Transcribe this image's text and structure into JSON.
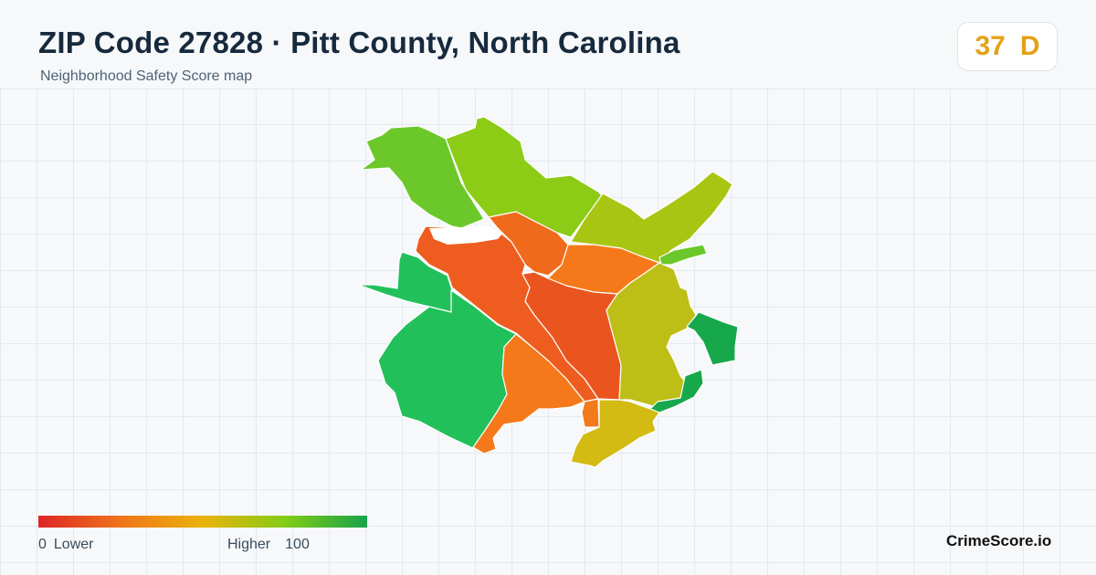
{
  "header": {
    "title": "ZIP Code 27828 · Pitt County, North Carolina",
    "subtitle": "Neighborhood Safety Score map"
  },
  "score_badge": {
    "score": "37",
    "grade": "D",
    "color": "#e3a215"
  },
  "legend": {
    "low_value": "0",
    "low_label": "Lower",
    "high_label": "Higher",
    "high_value": "100",
    "colors": [
      "#dc2626",
      "#f0741c",
      "#eab308",
      "#84cc16",
      "#16a34a"
    ]
  },
  "brand": {
    "name": "CrimeScore.io"
  },
  "map": {
    "region_colors": {
      "north_west": "#6cc82a",
      "north_central": "#8ccb16",
      "north_east": "#a8c514",
      "east_strip": "#6cc82a",
      "center_north": "#f06a1c",
      "center_east": "#f5791a",
      "center": "#ee5d1f",
      "center_right": "#ea551f",
      "west": "#22c05a",
      "south_west": "#22c05a",
      "south_central": "#f5781b",
      "east": "#bdbe16",
      "far_east_upper": "#17a84b",
      "far_east_lower": "#17a84b",
      "south_east": "#d3bb14",
      "small_south": "#f27a1b"
    }
  }
}
